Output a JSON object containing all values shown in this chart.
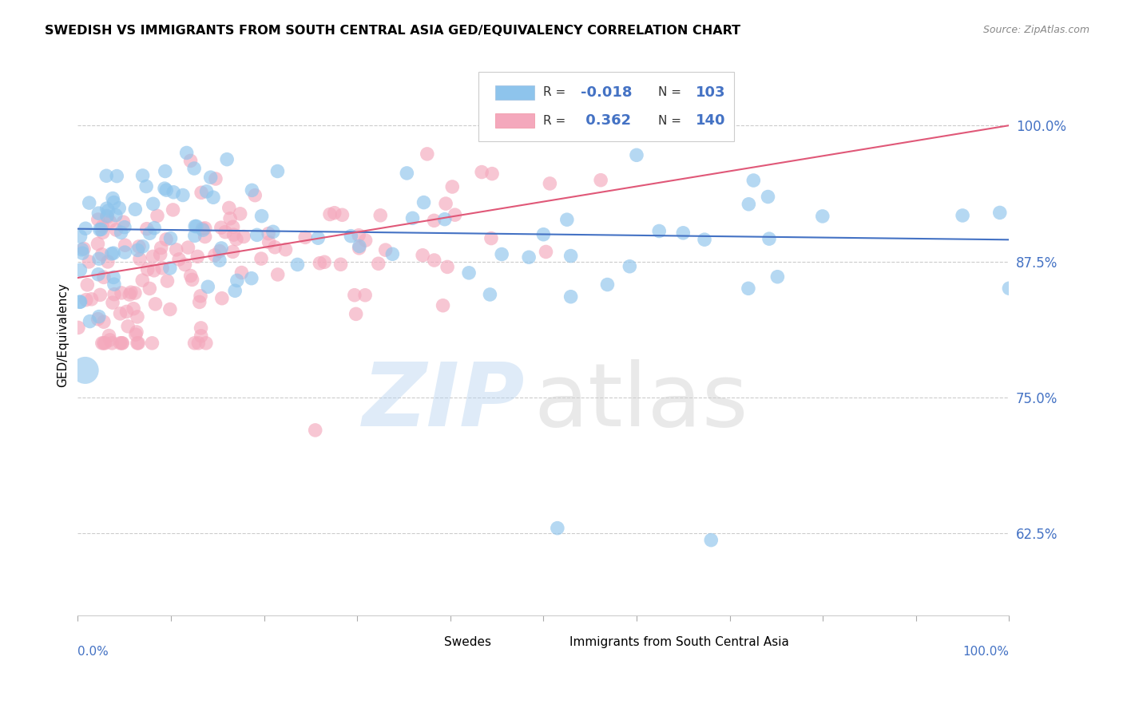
{
  "title": "SWEDISH VS IMMIGRANTS FROM SOUTH CENTRAL ASIA GED/EQUIVALENCY CORRELATION CHART",
  "source": "Source: ZipAtlas.com",
  "ylabel": "GED/Equivalency",
  "ytick_labels": [
    "62.5%",
    "75.0%",
    "87.5%",
    "100.0%"
  ],
  "ytick_values": [
    0.625,
    0.75,
    0.875,
    1.0
  ],
  "xlim": [
    0.0,
    1.0
  ],
  "ylim": [
    0.55,
    1.06
  ],
  "R1": -0.018,
  "N1": 103,
  "R2": 0.362,
  "N2": 140,
  "color_blue": "#8EC4EC",
  "color_pink": "#F4A8BC",
  "trend_blue": "#4472C4",
  "trend_pink": "#E05878",
  "background": "#FFFFFF",
  "legend_label1": "Swedes",
  "legend_label2": "Immigrants from South Central Asia"
}
